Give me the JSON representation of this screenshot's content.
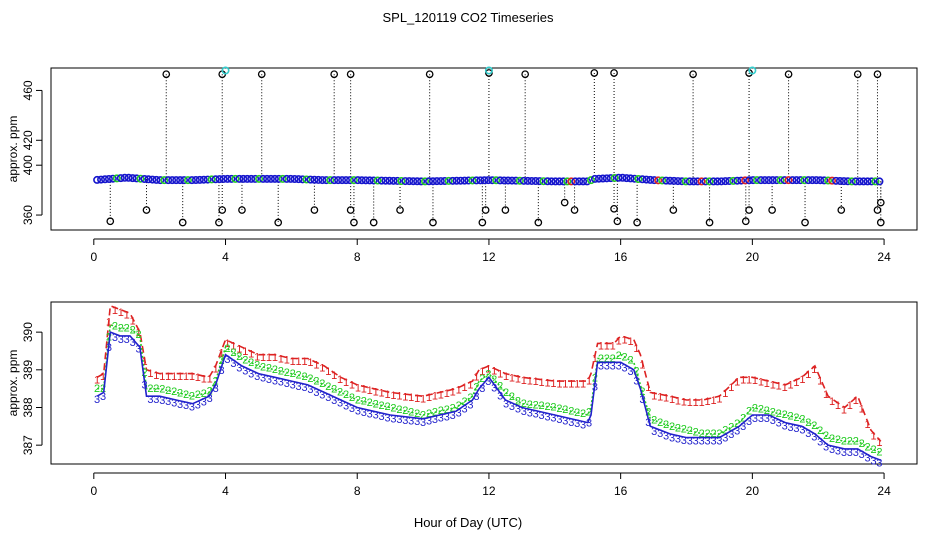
{
  "title": "SPL_120119  CO2 Timeseries",
  "xlabel": "Hour of Day (UTC)",
  "chart_data": [
    {
      "type": "scatter",
      "panel": "top",
      "ylabel": "approx. ppm",
      "xlim": [
        -1.3,
        25
      ],
      "ylim": [
        348,
        478
      ],
      "xticks": [
        0,
        4,
        8,
        12,
        16,
        20,
        24
      ],
      "yticks": [
        360,
        400,
        420,
        460
      ],
      "baseline": [
        [
          0,
          388
        ],
        [
          0.5,
          389
        ],
        [
          1,
          390
        ],
        [
          1.5,
          389
        ],
        [
          2,
          388
        ],
        [
          3,
          388
        ],
        [
          4,
          389
        ],
        [
          5,
          389
        ],
        [
          6,
          389
        ],
        [
          7,
          388
        ],
        [
          8,
          388
        ],
        [
          10,
          387
        ],
        [
          12,
          388
        ],
        [
          14,
          387
        ],
        [
          15,
          387
        ],
        [
          15.2,
          389
        ],
        [
          16,
          390
        ],
        [
          17,
          388
        ],
        [
          18,
          387
        ],
        [
          19,
          387
        ],
        [
          20,
          388
        ],
        [
          21,
          388
        ],
        [
          22,
          388
        ],
        [
          23,
          387
        ],
        [
          24,
          387
        ]
      ],
      "high_outliers": [
        [
          2.2,
          473
        ],
        [
          3.9,
          473
        ],
        [
          5.1,
          473
        ],
        [
          7.3,
          473
        ],
        [
          7.8,
          473
        ],
        [
          10.2,
          473
        ],
        [
          12,
          474
        ],
        [
          13.1,
          473
        ],
        [
          15.2,
          474
        ],
        [
          15.8,
          474
        ],
        [
          18.2,
          473
        ],
        [
          19.9,
          474
        ],
        [
          21.1,
          473
        ],
        [
          23.2,
          473
        ],
        [
          23.8,
          473
        ]
      ],
      "cyan_highs": [
        [
          4,
          476
        ],
        [
          12,
          476
        ],
        [
          20,
          476
        ]
      ],
      "low_outliers": [
        [
          0.5,
          355
        ],
        [
          1.6,
          364
        ],
        [
          2.7,
          354
        ],
        [
          3.8,
          354
        ],
        [
          3.9,
          364
        ],
        [
          4.5,
          364
        ],
        [
          5.6,
          354
        ],
        [
          6.7,
          364
        ],
        [
          7.8,
          364
        ],
        [
          7.9,
          354
        ],
        [
          8.5,
          354
        ],
        [
          9.3,
          364
        ],
        [
          10.3,
          354
        ],
        [
          11.8,
          354
        ],
        [
          11.9,
          364
        ],
        [
          12.5,
          364
        ],
        [
          13.5,
          354
        ],
        [
          14.3,
          370
        ],
        [
          14.6,
          364
        ],
        [
          15.8,
          365
        ],
        [
          15.9,
          355
        ],
        [
          16.5,
          354
        ],
        [
          17.6,
          364
        ],
        [
          18.7,
          354
        ],
        [
          19.8,
          355
        ],
        [
          19.9,
          364
        ],
        [
          20.6,
          364
        ],
        [
          21.6,
          354
        ],
        [
          22.7,
          364
        ],
        [
          23.8,
          364
        ],
        [
          23.9,
          354
        ],
        [
          23.9,
          370
        ]
      ],
      "colors": {
        "baseline": "#1515cc",
        "green": "#22cc22",
        "red": "#dd2222",
        "cyan": "#33cccc",
        "outlier": "#000000"
      }
    },
    {
      "type": "line",
      "panel": "bottom",
      "ylabel": "approx. ppm",
      "xlim": [
        -1.3,
        25
      ],
      "ylim": [
        386.5,
        390.8
      ],
      "xticks": [
        0,
        4,
        8,
        12,
        16,
        20,
        24
      ],
      "yticks": [
        387,
        388,
        389,
        390
      ],
      "series": [
        {
          "name": "1",
          "color": "#dd2222",
          "points": [
            [
              0.1,
              388.8
            ],
            [
              0.3,
              388.9
            ],
            [
              0.5,
              390.7
            ],
            [
              0.8,
              390.6
            ],
            [
              1.1,
              390.5
            ],
            [
              1.4,
              390.0
            ],
            [
              1.6,
              389.0
            ],
            [
              2.0,
              388.9
            ],
            [
              2.5,
              388.9
            ],
            [
              3.0,
              388.9
            ],
            [
              3.5,
              388.8
            ],
            [
              3.7,
              389.1
            ],
            [
              4.0,
              389.8
            ],
            [
              4.5,
              389.6
            ],
            [
              5.0,
              389.4
            ],
            [
              5.5,
              389.4
            ],
            [
              6.0,
              389.3
            ],
            [
              6.5,
              389.3
            ],
            [
              7.0,
              389.1
            ],
            [
              7.5,
              388.8
            ],
            [
              8.0,
              388.6
            ],
            [
              8.5,
              388.5
            ],
            [
              9.0,
              388.4
            ],
            [
              10.0,
              388.3
            ],
            [
              11.0,
              388.5
            ],
            [
              11.5,
              388.7
            ],
            [
              11.7,
              389.0
            ],
            [
              12.0,
              389.1
            ],
            [
              12.5,
              388.9
            ],
            [
              13.0,
              388.8
            ],
            [
              14.0,
              388.7
            ],
            [
              15.0,
              388.7
            ],
            [
              15.1,
              388.9
            ],
            [
              15.3,
              389.7
            ],
            [
              15.8,
              389.7
            ],
            [
              16.0,
              389.9
            ],
            [
              16.4,
              389.8
            ],
            [
              16.6,
              389.4
            ],
            [
              16.9,
              388.4
            ],
            [
              17.5,
              388.3
            ],
            [
              18.0,
              388.2
            ],
            [
              18.5,
              388.2
            ],
            [
              19.0,
              388.3
            ],
            [
              19.6,
              388.8
            ],
            [
              20.0,
              388.8
            ],
            [
              20.5,
              388.7
            ],
            [
              21.0,
              388.6
            ],
            [
              21.5,
              388.8
            ],
            [
              21.9,
              389.1
            ],
            [
              22.3,
              388.3
            ],
            [
              22.8,
              388.0
            ],
            [
              23.2,
              388.3
            ],
            [
              23.6,
              387.4
            ],
            [
              23.9,
              387.1
            ]
          ]
        },
        {
          "name": "2",
          "color": "#22cc22",
          "points": [
            [
              0.1,
              388.5
            ],
            [
              0.3,
              388.5
            ],
            [
              0.5,
              390.2
            ],
            [
              0.8,
              390.1
            ],
            [
              1.1,
              390.1
            ],
            [
              1.4,
              389.9
            ],
            [
              1.6,
              388.5
            ],
            [
              2.0,
              388.5
            ],
            [
              2.5,
              388.4
            ],
            [
              3.0,
              388.3
            ],
            [
              3.5,
              388.4
            ],
            [
              3.7,
              388.7
            ],
            [
              4.0,
              389.6
            ],
            [
              4.5,
              389.3
            ],
            [
              5.0,
              389.1
            ],
            [
              5.5,
              389.0
            ],
            [
              6.0,
              388.9
            ],
            [
              6.5,
              388.8
            ],
            [
              7.0,
              388.6
            ],
            [
              7.5,
              388.4
            ],
            [
              8.0,
              388.2
            ],
            [
              8.5,
              388.1
            ],
            [
              9.0,
              388.0
            ],
            [
              10.0,
              387.8
            ],
            [
              11.0,
              388.0
            ],
            [
              11.5,
              388.3
            ],
            [
              11.7,
              388.7
            ],
            [
              12.0,
              388.9
            ],
            [
              12.5,
              388.4
            ],
            [
              13.0,
              388.1
            ],
            [
              14.0,
              388.0
            ],
            [
              15.0,
              387.8
            ],
            [
              15.1,
              388.0
            ],
            [
              15.3,
              389.3
            ],
            [
              15.8,
              389.3
            ],
            [
              16.0,
              389.4
            ],
            [
              16.4,
              389.2
            ],
            [
              16.6,
              388.6
            ],
            [
              16.9,
              387.7
            ],
            [
              17.5,
              387.5
            ],
            [
              18.0,
              387.4
            ],
            [
              18.5,
              387.3
            ],
            [
              19.0,
              387.3
            ],
            [
              19.6,
              387.6
            ],
            [
              20.0,
              388.0
            ],
            [
              20.5,
              387.9
            ],
            [
              21.0,
              387.8
            ],
            [
              21.5,
              387.7
            ],
            [
              21.9,
              387.5
            ],
            [
              22.3,
              387.2
            ],
            [
              22.8,
              387.1
            ],
            [
              23.2,
              387.1
            ],
            [
              23.6,
              386.9
            ],
            [
              23.9,
              386.8
            ]
          ]
        },
        {
          "name": "3",
          "color": "#2222cc",
          "points": [
            [
              0.1,
              388.3
            ],
            [
              0.3,
              388.4
            ],
            [
              0.5,
              390.0
            ],
            [
              0.8,
              389.9
            ],
            [
              1.1,
              389.9
            ],
            [
              1.4,
              389.6
            ],
            [
              1.6,
              388.3
            ],
            [
              2.0,
              388.3
            ],
            [
              2.5,
              388.2
            ],
            [
              3.0,
              388.1
            ],
            [
              3.5,
              388.3
            ],
            [
              3.7,
              388.6
            ],
            [
              4.0,
              389.4
            ],
            [
              4.5,
              389.1
            ],
            [
              5.0,
              388.9
            ],
            [
              5.5,
              388.8
            ],
            [
              6.0,
              388.7
            ],
            [
              6.5,
              388.6
            ],
            [
              7.0,
              388.4
            ],
            [
              7.5,
              388.2
            ],
            [
              8.0,
              388.0
            ],
            [
              8.5,
              387.9
            ],
            [
              9.0,
              387.8
            ],
            [
              10.0,
              387.7
            ],
            [
              11.0,
              387.9
            ],
            [
              11.5,
              388.2
            ],
            [
              11.7,
              388.5
            ],
            [
              12.0,
              388.8
            ],
            [
              12.5,
              388.2
            ],
            [
              13.0,
              388.0
            ],
            [
              14.0,
              387.8
            ],
            [
              15.0,
              387.6
            ],
            [
              15.1,
              387.8
            ],
            [
              15.3,
              389.2
            ],
            [
              15.8,
              389.2
            ],
            [
              16.0,
              389.2
            ],
            [
              16.4,
              389.0
            ],
            [
              16.6,
              388.5
            ],
            [
              16.9,
              387.5
            ],
            [
              17.5,
              387.3
            ],
            [
              18.0,
              387.2
            ],
            [
              18.5,
              387.2
            ],
            [
              19.0,
              387.2
            ],
            [
              19.6,
              387.5
            ],
            [
              20.0,
              387.8
            ],
            [
              20.5,
              387.8
            ],
            [
              21.0,
              387.6
            ],
            [
              21.5,
              387.5
            ],
            [
              21.9,
              387.3
            ],
            [
              22.3,
              387.0
            ],
            [
              22.8,
              386.9
            ],
            [
              23.2,
              386.9
            ],
            [
              23.6,
              386.7
            ],
            [
              23.9,
              386.6
            ]
          ]
        }
      ]
    }
  ]
}
